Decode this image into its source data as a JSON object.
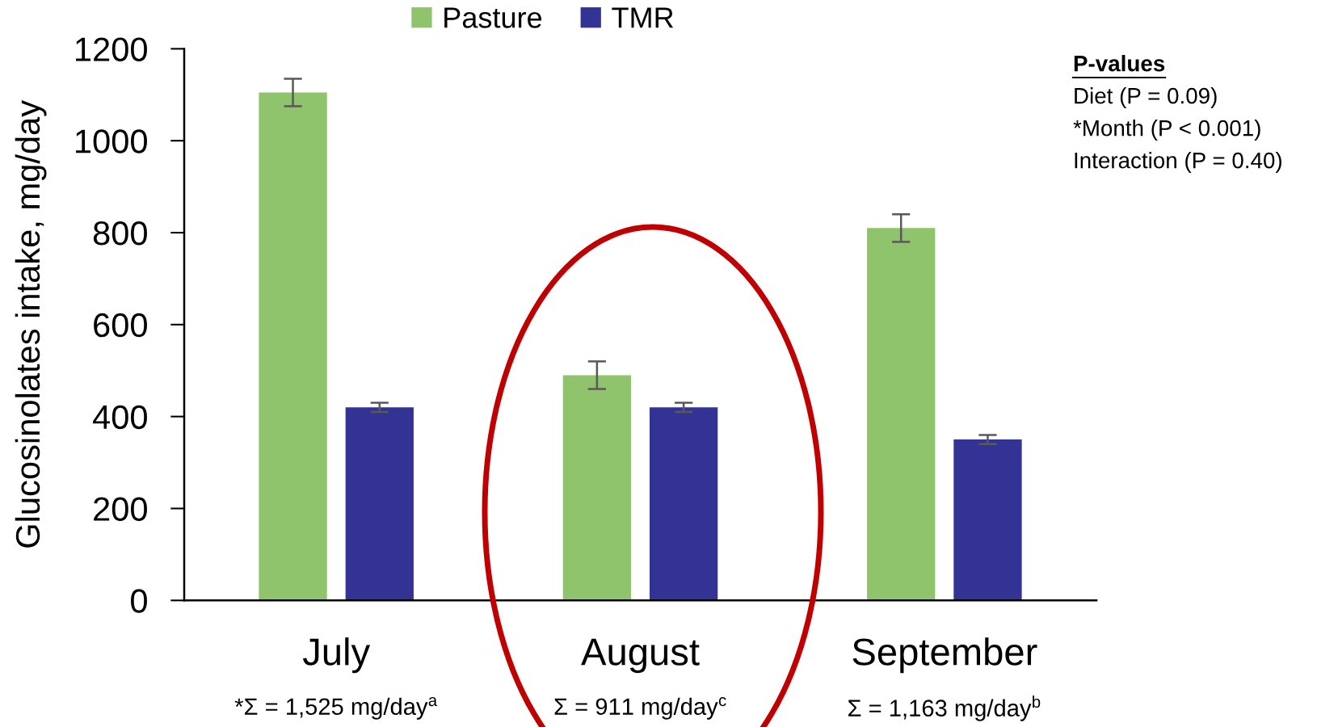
{
  "chart_data": {
    "type": "bar",
    "ylabel": "Glucosinolates intake, mg/day",
    "categories": [
      "July",
      "August",
      "September"
    ],
    "series": [
      {
        "name": "Pasture",
        "color": "#8fc36c",
        "values": [
          1105,
          490,
          810
        ],
        "errors": [
          30,
          30,
          30
        ]
      },
      {
        "name": "TMR",
        "color": "#323395",
        "values": [
          420,
          420,
          350
        ],
        "errors": [
          10,
          10,
          10
        ]
      }
    ],
    "ylim": [
      0,
      1200
    ],
    "yticks": [
      0,
      200,
      400,
      600,
      800,
      1000,
      1200
    ],
    "legend": "top",
    "annotations": [
      "P-values",
      "Diet (P = 0.09)",
      "*Month (P < 0.001)",
      "Interaction (P = 0.40)",
      "*Σ = 1,525 mg/day$^{a}$",
      "Σ = 911 mg/day$^{c}$",
      "Σ = 1,163 mg/day$^{b}$"
    ]
  }
}
